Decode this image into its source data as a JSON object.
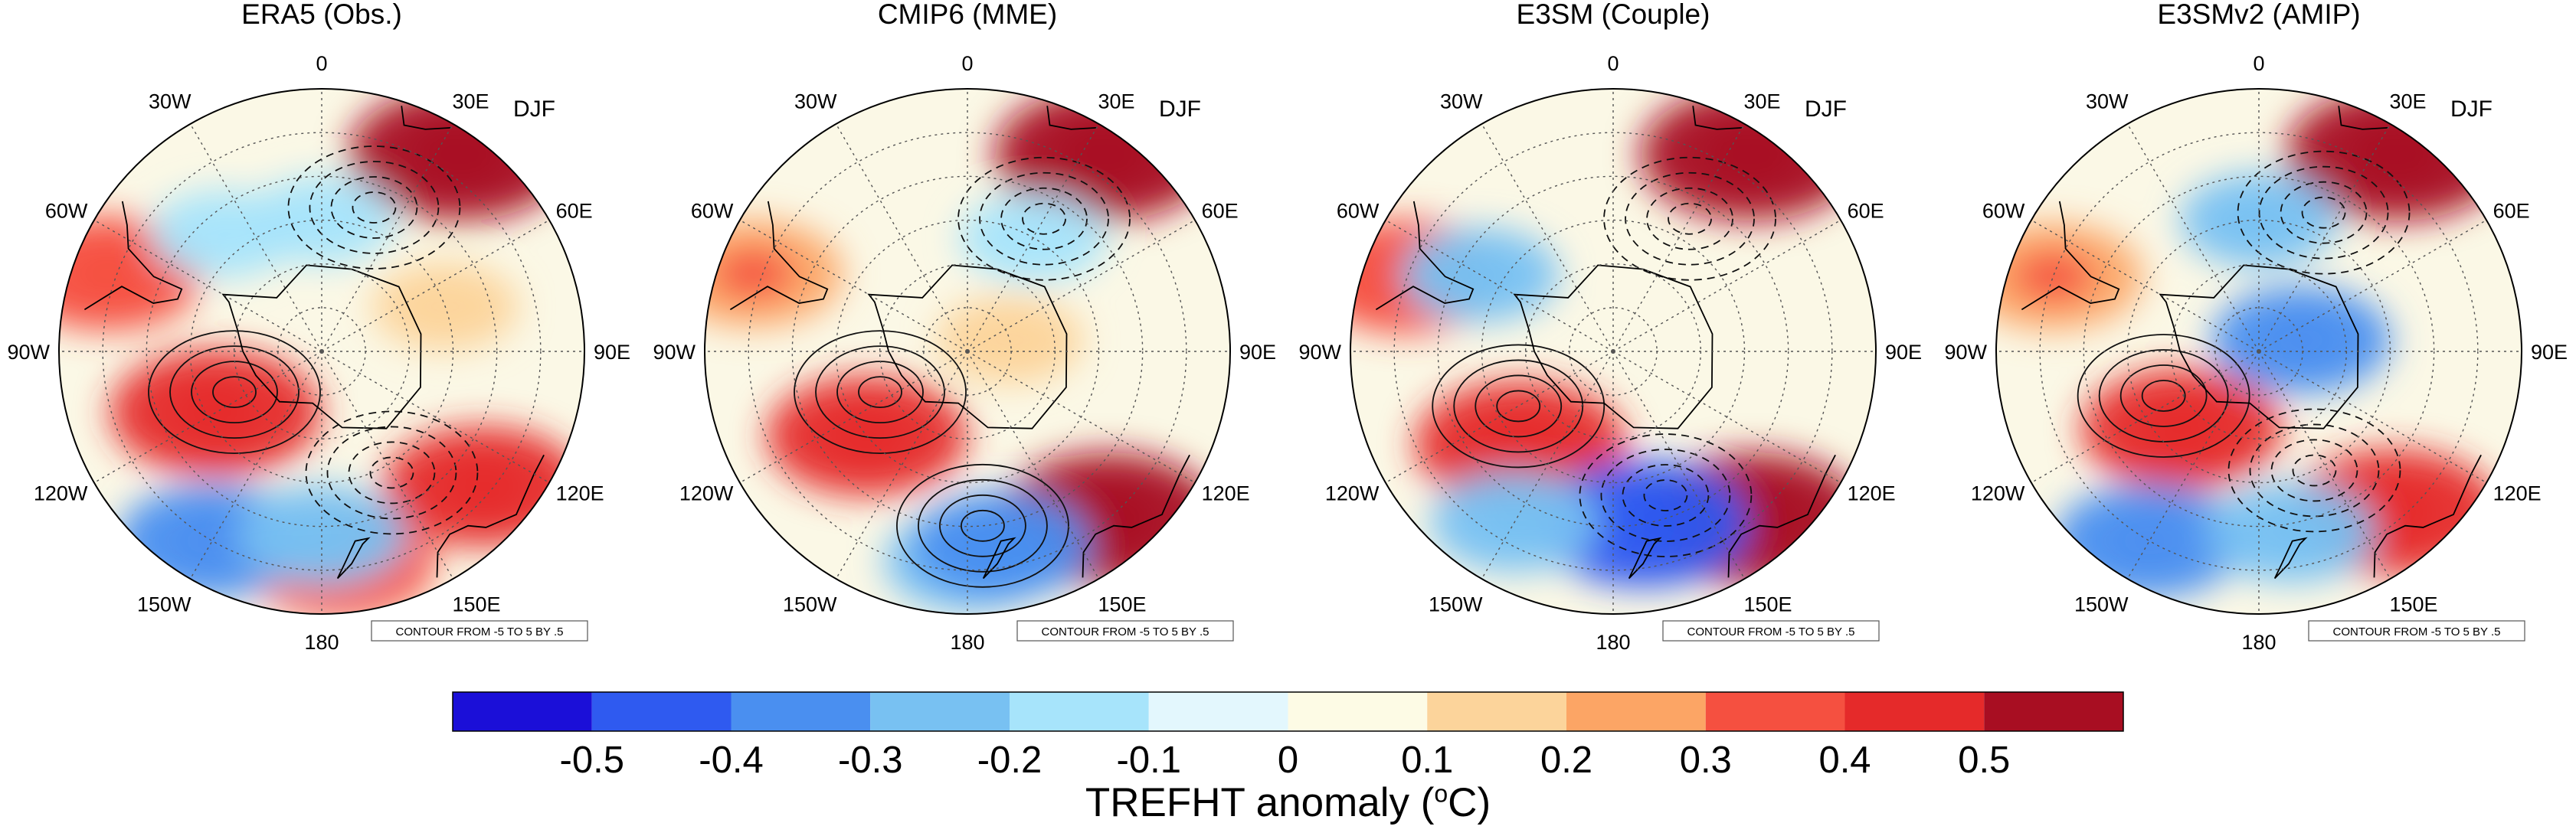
{
  "figure": {
    "season": "DJF",
    "contour_note": "CONTOUR FROM -5 TO 5 BY .5",
    "panel_titles": [
      "ERA5 (Obs.)",
      "CMIP6 (MME)",
      "E3SM (Couple)",
      "E3SMv2 (AMIP)"
    ],
    "longitude_labels": [
      "0",
      "30E",
      "60E",
      "90E",
      "120E",
      "150E",
      "180",
      "150W",
      "120W",
      "90W",
      "60W",
      "30W"
    ]
  },
  "colors": {
    "levels": [
      "#1b0fd8",
      "#2f5af0",
      "#4a8ff0",
      "#78c1f2",
      "#a7e4fb",
      "#e3f7fd",
      "#fdfbe5",
      "#fcd49b",
      "#fca565",
      "#f55040",
      "#e52a2a",
      "#a80e22"
    ]
  },
  "colorbar": {
    "ticks": [
      "-0.5",
      "-0.4",
      "-0.3",
      "-0.2",
      "-0.1",
      "0",
      "0.1",
      "0.2",
      "0.3",
      "0.4",
      "0.5"
    ],
    "title_main": "TREFHT anomaly (",
    "title_sup": "o",
    "title_unit": "C)"
  },
  "chart_data": {
    "type": "heatmap",
    "projection": "south-polar-stereographic",
    "variable": "TREFHT anomaly",
    "units": "°C",
    "season": "DJF",
    "color_levels": [
      -0.5,
      -0.4,
      -0.3,
      -0.2,
      -0.1,
      0,
      0.1,
      0.2,
      0.3,
      0.4,
      0.5
    ],
    "contour_range": [
      -5,
      5
    ],
    "contour_interval": 0.5,
    "panels": [
      {
        "name": "ERA5 (Obs.)",
        "features": [
          {
            "type": "warm",
            "lon": -120,
            "lat": -62,
            "value": 0.45
          },
          {
            "type": "warm",
            "lon": 35,
            "lat": -35,
            "value": 0.5
          },
          {
            "type": "warm",
            "lon": 130,
            "lat": -42,
            "value": 0.4
          },
          {
            "type": "warm",
            "lon": 175,
            "lat": -42,
            "value": 0.35
          },
          {
            "type": "warm",
            "lon": -70,
            "lat": -38,
            "value": 0.35
          },
          {
            "type": "warm",
            "lon": 70,
            "lat": -60,
            "value": 0.15
          },
          {
            "type": "cold",
            "lon": -150,
            "lat": -40,
            "value": -0.35
          },
          {
            "type": "cold",
            "lon": -180,
            "lat": -48,
            "value": -0.25
          },
          {
            "type": "cold",
            "lon": 0,
            "lat": -60,
            "value": -0.15
          },
          {
            "type": "cold",
            "lon": -40,
            "lat": -55,
            "value": -0.15
          }
        ],
        "contours": [
          {
            "lon": -115,
            "lat": -68,
            "sign": "positive"
          },
          {
            "lon": 20,
            "lat": -55,
            "sign": "negative"
          },
          {
            "lon": 150,
            "lat": -58,
            "sign": "negative"
          }
        ]
      },
      {
        "name": "CMIP6 (MME)",
        "features": [
          {
            "type": "warm",
            "lon": -130,
            "lat": -60,
            "value": 0.4
          },
          {
            "type": "warm",
            "lon": 35,
            "lat": -35,
            "value": 0.5
          },
          {
            "type": "warm",
            "lon": 140,
            "lat": -40,
            "value": 0.5
          },
          {
            "type": "warm",
            "lon": 75,
            "lat": -80,
            "value": 0.15
          },
          {
            "type": "warm",
            "lon": -70,
            "lat": -38,
            "value": 0.3
          },
          {
            "type": "cold",
            "lon": -180,
            "lat": -42,
            "value": -0.25
          },
          {
            "type": "cold",
            "lon": 170,
            "lat": -45,
            "value": -0.3
          },
          {
            "type": "cold",
            "lon": 30,
            "lat": -60,
            "value": -0.15
          }
        ],
        "contours": [
          {
            "lon": -115,
            "lat": -68,
            "sign": "positive"
          },
          {
            "lon": 30,
            "lat": -55,
            "sign": "negative"
          },
          {
            "lon": 175,
            "lat": -50,
            "sign": "positive"
          }
        ]
      },
      {
        "name": "E3SM (Couple)",
        "features": [
          {
            "type": "warm",
            "lon": -135,
            "lat": -60,
            "value": 0.45
          },
          {
            "type": "warm",
            "lon": 35,
            "lat": -35,
            "value": 0.5
          },
          {
            "type": "warm",
            "lon": 140,
            "lat": -40,
            "value": 0.5
          },
          {
            "type": "warm",
            "lon": -70,
            "lat": -40,
            "value": 0.35
          },
          {
            "type": "cold",
            "lon": 170,
            "lat": -50,
            "value": -0.45
          },
          {
            "type": "cold",
            "lon": -150,
            "lat": -45,
            "value": -0.25
          },
          {
            "type": "cold",
            "lon": -60,
            "lat": -55,
            "value": -0.2
          }
        ],
        "contours": [
          {
            "lon": -120,
            "lat": -65,
            "sign": "positive"
          },
          {
            "lon": 160,
            "lat": -55,
            "sign": "negative"
          },
          {
            "lon": 30,
            "lat": -55,
            "sign": "negative"
          }
        ]
      },
      {
        "name": "E3SMv2 (AMIP)",
        "features": [
          {
            "type": "warm",
            "lon": -135,
            "lat": -65,
            "value": 0.4
          },
          {
            "type": "warm",
            "lon": 35,
            "lat": -35,
            "value": 0.5
          },
          {
            "type": "warm",
            "lon": 140,
            "lat": -42,
            "value": 0.45
          },
          {
            "type": "warm",
            "lon": -70,
            "lat": -40,
            "value": 0.3
          },
          {
            "type": "cold",
            "lon": 75,
            "lat": -80,
            "value": -0.3
          },
          {
            "type": "cold",
            "lon": -150,
            "lat": -40,
            "value": -0.35
          },
          {
            "type": "cold",
            "lon": 0,
            "lat": -60,
            "value": -0.2
          },
          {
            "type": "cold",
            "lon": 170,
            "lat": -48,
            "value": -0.25
          }
        ],
        "contours": [
          {
            "lon": -115,
            "lat": -66,
            "sign": "positive"
          },
          {
            "lon": 25,
            "lat": -55,
            "sign": "negative"
          },
          {
            "lon": 155,
            "lat": -60,
            "sign": "negative"
          }
        ]
      }
    ]
  }
}
